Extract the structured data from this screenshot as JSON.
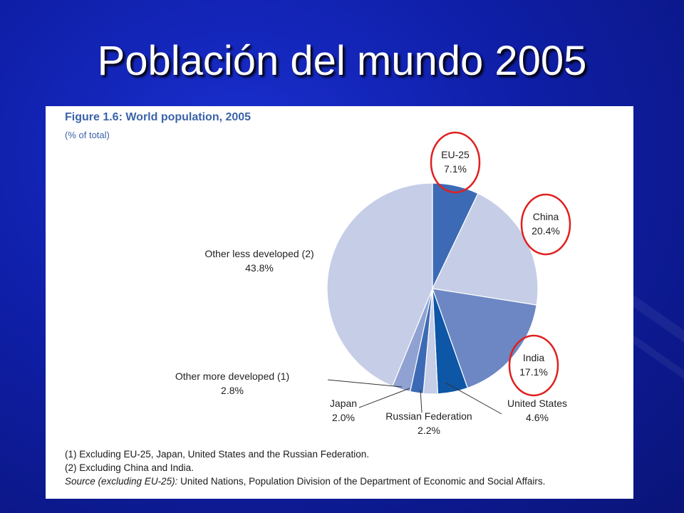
{
  "slide": {
    "title": "Población del mundo 2005"
  },
  "figure": {
    "title": "Figure 1.6: World population, 2005",
    "subtitle": "(% of total)",
    "note1": "(1) Excluding EU-25, Japan, United States and the Russian Federation.",
    "note2": "(2) Excluding China and India.",
    "source_label": "Source (excluding EU-25):",
    "source_text": " United Nations, Population Division of the Department of Economic and Social Affairs."
  },
  "chart_data": {
    "type": "pie",
    "title": "Figure 1.6: World population, 2005",
    "subtitle": "(% of total)",
    "slices": [
      {
        "label": "EU-25",
        "value": 7.1,
        "value_label": "7.1%",
        "color": "#3d6ab4",
        "highlighted": true
      },
      {
        "label": "China",
        "value": 20.4,
        "value_label": "20.4%",
        "color": "#c5cde7",
        "highlighted": true
      },
      {
        "label": "India",
        "value": 17.1,
        "value_label": "17.1%",
        "color": "#6d87c4",
        "highlighted": true
      },
      {
        "label": "United States",
        "value": 4.6,
        "value_label": "4.6%",
        "color": "#0e56a6",
        "highlighted": false
      },
      {
        "label": "Russian Federation",
        "value": 2.2,
        "value_label": "2.2%",
        "color": "#c5cde7",
        "highlighted": false
      },
      {
        "label": "Japan",
        "value": 2.0,
        "value_label": "2.0%",
        "color": "#3d6ab4",
        "highlighted": false
      },
      {
        "label": "Other more developed (1)",
        "value": 2.8,
        "value_label": "2.8%",
        "color": "#8fa2d2",
        "highlighted": false
      },
      {
        "label": "Other less developed (2)",
        "value": 43.8,
        "value_label": "43.8%",
        "color": "#c5cde7",
        "highlighted": false
      }
    ],
    "highlight_color": "#e02020"
  }
}
